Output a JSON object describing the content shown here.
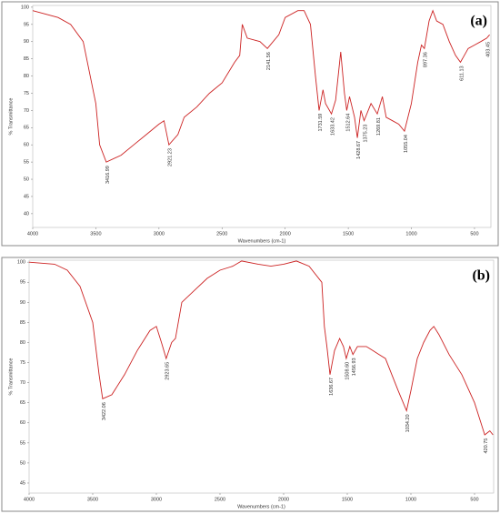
{
  "chart_data": [
    {
      "type": "line",
      "panel_label": "(a)",
      "x_label": "Wavenumbers (cm-1)",
      "y_label": "% Transmittance",
      "color": "#cc2222",
      "xlim": [
        4000,
        370
      ],
      "ylim": [
        36,
        100.5
      ],
      "xticks": [
        4000,
        3500,
        3000,
        2500,
        2000,
        1500,
        1000,
        500
      ],
      "yticks": [
        40,
        45,
        50,
        55,
        60,
        65,
        70,
        75,
        80,
        85,
        90,
        95,
        100
      ],
      "x": [
        4000,
        3800,
        3700,
        3600,
        3500,
        3470,
        3417,
        3300,
        3200,
        3100,
        3000,
        2960,
        2921,
        2850,
        2800,
        2700,
        2600,
        2500,
        2400,
        2360,
        2340,
        2300,
        2200,
        2141,
        2050,
        2000,
        1900,
        1850,
        1800,
        1760,
        1731,
        1700,
        1680,
        1633,
        1600,
        1560,
        1530,
        1512,
        1490,
        1450,
        1428,
        1400,
        1375,
        1320,
        1270,
        1230,
        1200,
        1150,
        1100,
        1055,
        1000,
        950,
        920,
        897,
        860,
        830,
        800,
        750,
        700,
        650,
        611,
        550,
        500,
        450,
        403,
        380
      ],
      "values": [
        99,
        97,
        95,
        90,
        72,
        60,
        55,
        57,
        60,
        63,
        66,
        67,
        60,
        63,
        68,
        71,
        75,
        78,
        84,
        86,
        95,
        91,
        90,
        88,
        92,
        97,
        99,
        99,
        95,
        80,
        70,
        76,
        72,
        69,
        73,
        87,
        75,
        70,
        74,
        68,
        62,
        70,
        67,
        72,
        69,
        74,
        68,
        67,
        66,
        64,
        72,
        84,
        89,
        88,
        96,
        99,
        96,
        95,
        90,
        86,
        84,
        88,
        89,
        90,
        91,
        92
      ],
      "annotations": [
        "3416.99",
        "2921.23",
        "2141.56",
        "1731.59",
        "1633.42",
        "1512.64",
        "1428.67",
        "1375.23",
        "1269.81",
        "1055.04",
        "897.36",
        "611.13",
        "403.45"
      ]
    },
    {
      "type": "line",
      "panel_label": "(b)",
      "x_label": "Wavenumbers (cm-1)",
      "y_label": "% Transmittance",
      "color": "#cc2222",
      "xlim": [
        4000,
        350
      ],
      "ylim": [
        42.5,
        100.5
      ],
      "xticks": [
        4000,
        3500,
        3000,
        2500,
        2000,
        1500,
        1000,
        500
      ],
      "yticks": [
        45,
        50,
        55,
        60,
        65,
        70,
        75,
        80,
        85,
        90,
        95,
        100
      ],
      "x": [
        4000,
        3800,
        3700,
        3600,
        3500,
        3450,
        3422,
        3350,
        3250,
        3150,
        3050,
        3000,
        2960,
        2923,
        2880,
        2850,
        2800,
        2700,
        2600,
        2500,
        2400,
        2330,
        2200,
        2100,
        2000,
        1900,
        1800,
        1700,
        1680,
        1660,
        1636,
        1600,
        1560,
        1530,
        1508,
        1480,
        1456,
        1420,
        1350,
        1300,
        1250,
        1200,
        1150,
        1100,
        1034,
        1000,
        950,
        900,
        850,
        820,
        780,
        700,
        600,
        500,
        450,
        420,
        380,
        355
      ],
      "values": [
        100,
        99.5,
        98,
        94,
        85,
        72,
        66,
        67,
        72,
        78,
        83,
        84,
        80,
        76,
        80,
        81,
        90,
        93,
        96,
        98,
        99,
        100.3,
        99.5,
        99,
        99.5,
        100.3,
        99,
        95,
        84,
        79,
        72,
        78,
        81,
        79,
        76,
        79,
        77,
        79,
        79,
        78,
        77,
        76,
        72,
        68,
        63,
        68,
        76,
        80,
        83,
        84,
        82,
        77,
        72,
        65,
        60,
        57,
        58,
        57
      ],
      "annotations": [
        "3422.06",
        "2923.65",
        "1636.67",
        "1508.60",
        "1456.93",
        "1034.20",
        "420.75"
      ]
    }
  ]
}
